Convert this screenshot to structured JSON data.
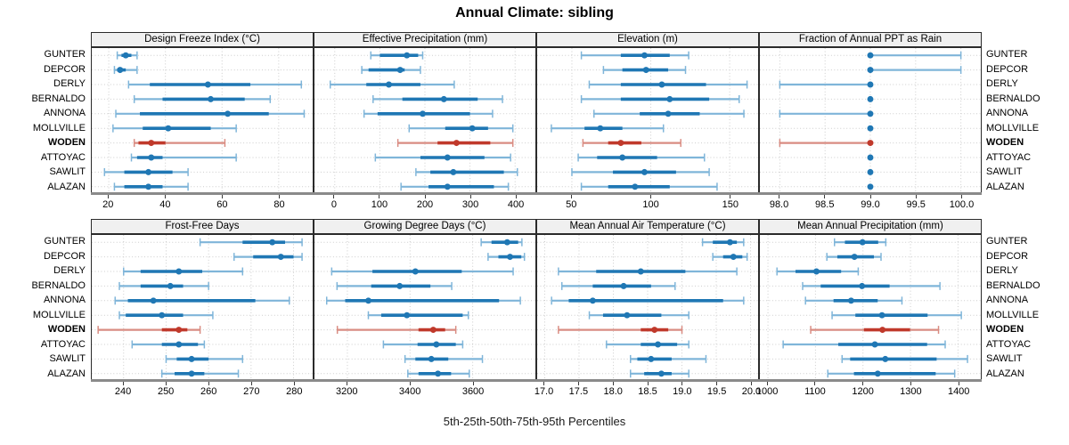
{
  "title": "Annual Climate: sibling",
  "caption": "5th-25th-50th-75th-95th Percentiles",
  "stations": [
    "GUNTER",
    "DEPCOR",
    "DERLY",
    "BERNALDO",
    "ANNONA",
    "MOLLVILLE",
    "WODEN",
    "ATTOYAC",
    "SAWLIT",
    "ALAZAN"
  ],
  "highlight_station": "WODEN",
  "colors": {
    "series": "#1f77b4",
    "series_light": "#7fb5d9",
    "highlight": "#c0392b",
    "highlight_light": "#d98c82",
    "grid": "#cccccc",
    "strip_bg": "#f0f0f0",
    "panel_border": "#2b2b2b",
    "axis_band": "#8a8a8a"
  },
  "chart_data": {
    "type": "dot-interval",
    "orientation": "horizontal",
    "percentiles": [
      5,
      25,
      50,
      75,
      95
    ],
    "grid": "dotted",
    "layout": "2 rows x 4 columns, station labels on both left and right sides",
    "panels": [
      {
        "title": "Design Freeze Index (°C)",
        "xlim": [
          14,
          92
        ],
        "ticks": [
          20,
          40,
          60,
          80
        ],
        "tick_labels": [
          "20",
          "40",
          "60",
          "80"
        ],
        "values": [
          [
            23,
            24.5,
            26,
            28,
            30
          ],
          [
            22,
            23,
            24,
            26,
            30
          ],
          [
            27,
            34.5,
            55,
            70,
            88
          ],
          [
            29,
            39,
            56,
            68,
            77
          ],
          [
            22.5,
            31,
            62,
            76.5,
            89
          ],
          [
            21.5,
            32,
            41,
            56,
            65
          ],
          [
            29,
            30.5,
            35,
            40,
            61
          ],
          [
            28,
            30,
            35,
            39,
            65
          ],
          [
            18.5,
            25.5,
            34,
            42.5,
            48
          ],
          [
            22,
            25.5,
            34,
            39,
            48
          ]
        ]
      },
      {
        "title": "Effective Precipitation (mm)",
        "xlim": [
          -45,
          445
        ],
        "ticks": [
          0,
          100,
          200,
          300,
          400
        ],
        "tick_labels": [
          "0",
          "100",
          "200",
          "300",
          "400"
        ],
        "values": [
          [
            80,
            100,
            160,
            185,
            195
          ],
          [
            60,
            75,
            145,
            155,
            190
          ],
          [
            -10,
            70,
            120,
            190,
            265
          ],
          [
            85,
            150,
            242,
            317,
            372
          ],
          [
            65,
            95,
            195,
            300,
            350
          ],
          [
            165,
            245,
            305,
            340,
            395
          ],
          [
            140,
            228,
            270,
            345,
            395
          ],
          [
            90,
            190,
            250,
            332,
            390
          ],
          [
            180,
            212,
            263,
            375,
            405
          ],
          [
            147,
            208,
            250,
            353,
            385
          ]
        ]
      },
      {
        "title": "Elevation (m)",
        "xlim": [
          28,
          168
        ],
        "ticks": [
          50,
          100,
          150
        ],
        "tick_labels": [
          "50",
          "100",
          "150"
        ],
        "values": [
          [
            56,
            81,
            96,
            112,
            124
          ],
          [
            70,
            82,
            97,
            111,
            122
          ],
          [
            61,
            81,
            107,
            135,
            161
          ],
          [
            56,
            81,
            112,
            137,
            156
          ],
          [
            64,
            93,
            111,
            131,
            159
          ],
          [
            37,
            58,
            68,
            82,
            108
          ],
          [
            57,
            73,
            81,
            94,
            119
          ],
          [
            54,
            66,
            82,
            104,
            134
          ],
          [
            50,
            76,
            96,
            116,
            137
          ],
          [
            56,
            73,
            90,
            112,
            142
          ]
        ]
      },
      {
        "title": "Fraction of Annual PPT as Rain",
        "xlim": [
          97.78,
          100.22
        ],
        "ticks": [
          98,
          98.5,
          99,
          99.5,
          100
        ],
        "tick_labels": [
          "98.0",
          "98.5",
          "99.0",
          "99.5",
          "100.0"
        ],
        "values": [
          [
            99,
            99,
            99,
            99,
            100
          ],
          [
            99,
            99,
            99,
            99,
            100
          ],
          [
            98,
            99,
            99,
            99,
            99
          ],
          [
            99,
            99,
            99,
            99,
            99
          ],
          [
            98,
            99,
            99,
            99,
            99
          ],
          [
            99,
            99,
            99,
            99,
            99
          ],
          [
            98,
            99,
            99,
            99,
            99
          ],
          [
            99,
            99,
            99,
            99,
            99
          ],
          [
            99,
            99,
            99,
            99,
            99
          ],
          [
            99,
            99,
            99,
            99,
            99
          ]
        ]
      },
      {
        "title": "Frost-Free Days",
        "xlim": [
          232.5,
          284.5
        ],
        "ticks": [
          240,
          250,
          260,
          270,
          280
        ],
        "tick_labels": [
          "240",
          "250",
          "260",
          "270",
          "280"
        ],
        "values": [
          [
            258,
            268,
            275,
            278,
            282
          ],
          [
            266,
            270.5,
            277,
            280,
            282
          ],
          [
            240,
            244,
            253,
            258.5,
            268
          ],
          [
            239,
            244,
            251,
            254,
            260
          ],
          [
            238,
            241,
            247,
            271,
            279
          ],
          [
            239,
            240.5,
            249,
            254,
            261
          ],
          [
            234,
            249,
            253,
            255,
            258
          ],
          [
            242,
            249,
            253,
            257.5,
            259
          ],
          [
            250,
            252.5,
            256,
            260,
            268
          ],
          [
            249,
            252,
            256,
            259,
            267
          ]
        ]
      },
      {
        "title": "Growing Degree Days (°C)",
        "xlim": [
          3095,
          3800
        ],
        "ticks": [
          3200,
          3400,
          3600
        ],
        "tick_labels": [
          "3200",
          "3400",
          "3600"
        ],
        "values": [
          [
            3627,
            3660,
            3710,
            3745,
            3757
          ],
          [
            3649,
            3682,
            3719,
            3755,
            3765
          ],
          [
            3150,
            3280,
            3417,
            3565,
            3729
          ],
          [
            3167,
            3276,
            3367,
            3465,
            3533
          ],
          [
            3134,
            3193,
            3267,
            3684,
            3752
          ],
          [
            3267,
            3308,
            3390,
            3568,
            3586
          ],
          [
            3168,
            3427,
            3474,
            3512,
            3546
          ],
          [
            3315,
            3424,
            3484,
            3546,
            3568
          ],
          [
            3384,
            3417,
            3468,
            3522,
            3631
          ],
          [
            3393,
            3427,
            3489,
            3531,
            3589
          ]
        ]
      },
      {
        "title": "Mean Annual Air Temperature (°C)",
        "xlim": [
          16.89,
          20.11
        ],
        "ticks": [
          17,
          17.5,
          18,
          18.5,
          19,
          19.5,
          20
        ],
        "tick_labels": [
          "17.0",
          "17.5",
          "18.0",
          "18.5",
          "19.0",
          "19.5",
          "20.0"
        ],
        "values": [
          [
            19.3,
            19.45,
            19.7,
            19.8,
            19.9
          ],
          [
            19.45,
            19.6,
            19.75,
            19.88,
            19.95
          ],
          [
            17.2,
            17.75,
            18.4,
            19.05,
            19.8
          ],
          [
            17.25,
            17.7,
            18.15,
            18.55,
            18.9
          ],
          [
            17.1,
            17.35,
            17.7,
            19.6,
            19.9
          ],
          [
            17.65,
            17.85,
            18.2,
            18.7,
            19.1
          ],
          [
            17.2,
            18.4,
            18.6,
            18.8,
            19.0
          ],
          [
            17.9,
            18.4,
            18.65,
            18.93,
            19.1
          ],
          [
            18.25,
            18.35,
            18.55,
            18.85,
            19.35
          ],
          [
            18.25,
            18.45,
            18.7,
            18.85,
            19.1
          ]
        ]
      },
      {
        "title": "Mean Annual Precipitation (mm)",
        "xlim": [
          983,
          1448
        ],
        "ticks": [
          1000,
          1100,
          1200,
          1300,
          1400
        ],
        "tick_labels": [
          "1000",
          "1100",
          "1200",
          "1300",
          "1400"
        ],
        "values": [
          [
            1140,
            1162,
            1199,
            1232,
            1248
          ],
          [
            1124,
            1146,
            1182,
            1223,
            1238
          ],
          [
            1019,
            1058,
            1102,
            1154,
            1190
          ],
          [
            1073,
            1111,
            1198,
            1256,
            1362
          ],
          [
            1079,
            1138,
            1175,
            1231,
            1282
          ],
          [
            1135,
            1184,
            1240,
            1336,
            1407
          ],
          [
            1090,
            1202,
            1241,
            1299,
            1359
          ],
          [
            1032,
            1148,
            1225,
            1335,
            1373
          ],
          [
            1156,
            1173,
            1247,
            1355,
            1420
          ],
          [
            1126,
            1181,
            1231,
            1353,
            1393
          ]
        ]
      }
    ]
  }
}
